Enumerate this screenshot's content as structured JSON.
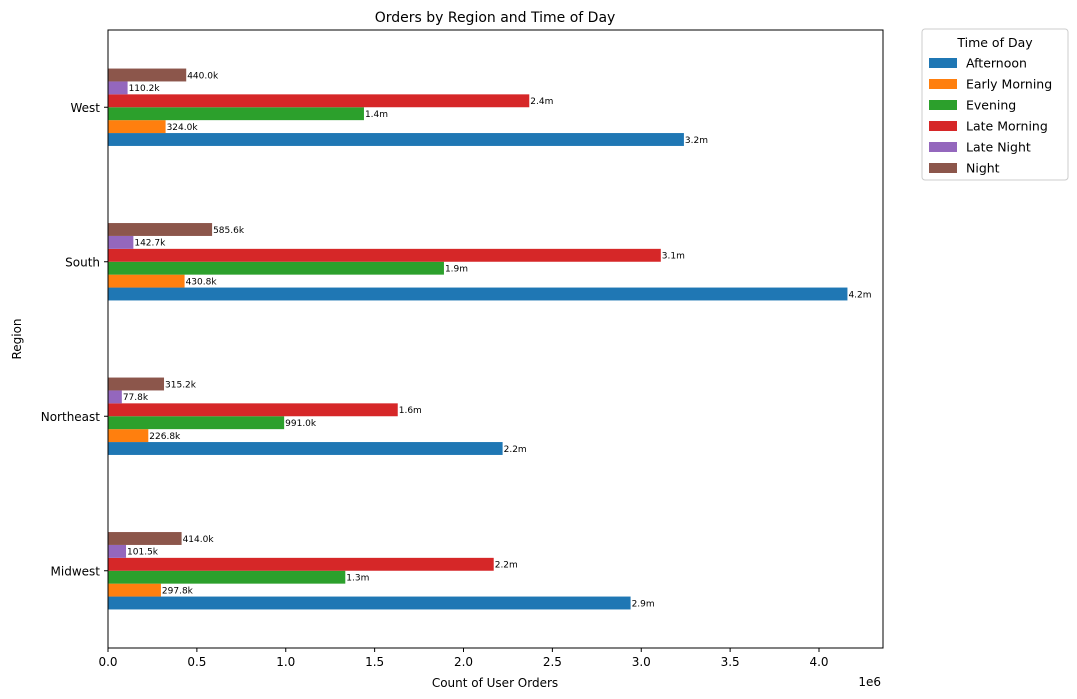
{
  "chart_data": {
    "type": "bar",
    "orientation": "horizontal",
    "title": "Orders by Region and Time of Day",
    "xlabel": "Count of User Orders",
    "ylabel": "Region",
    "x_offset_label": "1e6",
    "xlim": [
      0,
      4.36
    ],
    "x_ticks": [
      "0.0",
      "0.5",
      "1.0",
      "1.5",
      "2.0",
      "2.5",
      "3.0",
      "3.5",
      "4.0"
    ],
    "categories": [
      "Midwest",
      "Northeast",
      "South",
      "West"
    ],
    "legend_title": "Time of Day",
    "legend_position": "outside-top-right",
    "series": [
      {
        "name": "Afternoon",
        "color": "#1f77b4",
        "values": [
          2.94,
          2.22,
          4.16,
          3.24
        ],
        "labels": [
          "2.9m",
          "2.2m",
          "4.2m",
          "3.2m"
        ]
      },
      {
        "name": "Early Morning",
        "color": "#ff7f0e",
        "values": [
          0.2978,
          0.2268,
          0.4308,
          0.324
        ],
        "labels": [
          "297.8k",
          "226.8k",
          "430.8k",
          "324.0k"
        ]
      },
      {
        "name": "Evening",
        "color": "#2ca02c",
        "values": [
          1.335,
          0.991,
          1.89,
          1.44
        ],
        "labels": [
          "1.3m",
          "991.0k",
          "1.9m",
          "1.4m"
        ]
      },
      {
        "name": "Late Morning",
        "color": "#d62728",
        "values": [
          2.17,
          1.63,
          3.11,
          2.37
        ],
        "labels": [
          "2.2m",
          "1.6m",
          "3.1m",
          "2.4m"
        ]
      },
      {
        "name": "Late Night",
        "color": "#9467bd",
        "values": [
          0.1015,
          0.0778,
          0.1427,
          0.1102
        ],
        "labels": [
          "101.5k",
          "77.8k",
          "142.7k",
          "110.2k"
        ]
      },
      {
        "name": "Night",
        "color": "#8c564b",
        "values": [
          0.414,
          0.3152,
          0.5856,
          0.44
        ],
        "labels": [
          "414.0k",
          "315.2k",
          "585.6k",
          "440.0k"
        ]
      }
    ]
  }
}
